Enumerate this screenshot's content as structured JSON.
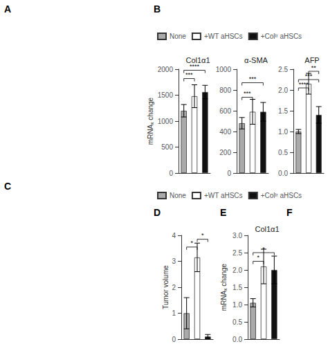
{
  "chart_data": [
    {
      "type": "bar",
      "title": "Col1α1",
      "ylabel": "mRNAₓ change",
      "categories": [
        "None",
        "+WT aHSCs",
        "+Colᴵʳ aHSCs"
      ],
      "values": [
        1200,
        1480,
        1560
      ],
      "errors": [
        120,
        220,
        130
      ],
      "colors": [
        "#aaaaaa",
        "#ffffff",
        "#111111"
      ],
      "ylim": [
        0,
        2000
      ],
      "yticks": [
        0,
        500,
        1000,
        1500,
        2000
      ],
      "grid": false,
      "tick_labels": "y",
      "legend": "top",
      "brackets": [
        {
          "from": "None",
          "to": "+WT aHSCs",
          "y": 1820,
          "label": "***"
        },
        {
          "from": "None",
          "to": "+Colᴵʳ aHSCs",
          "y": 1980,
          "label": "****"
        }
      ]
    },
    {
      "type": "bar",
      "title": "α-SMA",
      "categories": [
        "None",
        "+WT aHSCs",
        "+Colᴵʳ aHSCs"
      ],
      "values": [
        480,
        590,
        590
      ],
      "errors": [
        55,
        120,
        90
      ],
      "colors": [
        "#aaaaaa",
        "#ffffff",
        "#111111"
      ],
      "ylim": [
        0,
        1000
      ],
      "yticks": [
        0,
        200,
        400,
        600,
        800,
        1000
      ],
      "grid": false,
      "tick_labels": "y",
      "brackets": [
        {
          "from": "None",
          "to": "+WT aHSCs",
          "y": 730,
          "label": "***"
        },
        {
          "from": "None",
          "to": "+Colᴵʳ aHSCs",
          "y": 870,
          "label": "***"
        }
      ]
    },
    {
      "type": "bar",
      "title": "AFP",
      "categories": [
        "None",
        "+WT aHSCs",
        "+Colᴵʳ aHSCs"
      ],
      "values": [
        1.0,
        2.15,
        1.4
      ],
      "errors": [
        0.05,
        0.25,
        0.2
      ],
      "colors": [
        "#aaaaaa",
        "#ffffff",
        "#111111"
      ],
      "ylim": [
        0.0,
        2.5
      ],
      "yticks": [
        {
          "value": 0,
          "label": "0.0"
        },
        0.5,
        {
          "value": 1,
          "label": "1.0"
        },
        1.5,
        {
          "value": 2,
          "label": "2.0"
        },
        2.5
      ],
      "grid": false,
      "tick_labels": "y",
      "brackets": [
        {
          "from": "None",
          "to": "+WT aHSCs",
          "y": 2.05,
          "label": "****"
        },
        {
          "from": "None",
          "to": "+Colᴵʳ aHSCs",
          "y": 2.25,
          "label": "***"
        },
        {
          "from": "+WT aHSCs",
          "to": "+Colᴵʳ aHSCs",
          "y": 2.45,
          "label": "**"
        }
      ]
    },
    {
      "type": "bar",
      "ylabel": "Tumor volume",
      "categories": [
        "None",
        "+WT aHSCs",
        "+Colᴵʳ aHSCs"
      ],
      "values": [
        1.0,
        3.15,
        0.1
      ],
      "errors": [
        0.6,
        0.55,
        0.08
      ],
      "colors": [
        "#aaaaaa",
        "#ffffff",
        "#111111"
      ],
      "ylim": [
        0,
        4
      ],
      "yticks": [
        0,
        1,
        2,
        3,
        4
      ],
      "grid": false,
      "tick_labels": "y",
      "legend": "top",
      "brackets": [
        {
          "from": "None",
          "to": "+WT aHSCs",
          "y": 3.55,
          "label": "*"
        },
        {
          "from": "+WT aHSCs",
          "to": "+Colᴵʳ aHSCs",
          "y": 3.85,
          "label": "*"
        }
      ]
    },
    {
      "type": "bar",
      "title": "Col1α1",
      "ylabel": "mRNAₓ change",
      "categories": [
        "None",
        "+WT aHSCs",
        "+Colᴵʳ aHSCs"
      ],
      "values": [
        1.05,
        2.1,
        2.0
      ],
      "errors": [
        0.12,
        0.5,
        0.4
      ],
      "colors": [
        "#aaaaaa",
        "#ffffff",
        "#111111"
      ],
      "ylim": [
        0.0,
        3.0
      ],
      "yticks": [
        {
          "value": 0,
          "label": "0.0"
        },
        0.5,
        {
          "value": 1,
          "label": "1.0"
        },
        1.5,
        {
          "value": 2,
          "label": "2.0"
        },
        2.5,
        {
          "value": 3,
          "label": "3.0"
        }
      ],
      "grid": false,
      "tick_labels": "y",
      "brackets": [
        {
          "from": "None",
          "to": "+WT aHSCs",
          "y": 2.25,
          "label": "*"
        },
        {
          "from": "None",
          "to": "+Colᴵʳ aHSCs",
          "y": 2.5,
          "label": "*"
        }
      ]
    }
  ],
  "annotations": [
    "A",
    "B",
    "C",
    "D",
    "E",
    "F"
  ]
}
